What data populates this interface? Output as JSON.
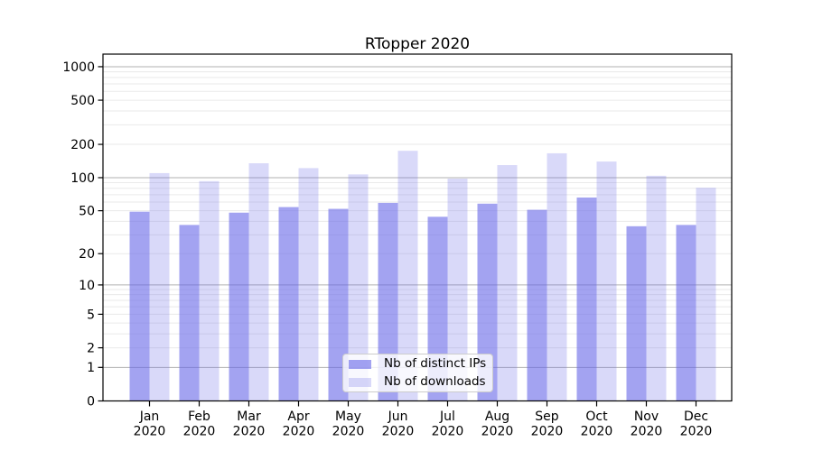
{
  "chart_data": {
    "type": "bar",
    "title": "RTopper 2020",
    "categories": [
      "Jan",
      "Feb",
      "Mar",
      "Apr",
      "May",
      "Jun",
      "Jul",
      "Aug",
      "Sep",
      "Oct",
      "Nov",
      "Dec"
    ],
    "category_year": "2020",
    "series": [
      {
        "name": "Nb of distinct IPs",
        "values": [
          49,
          37,
          48,
          54,
          52,
          59,
          44,
          58,
          51,
          66,
          36,
          37
        ],
        "color": "#6666e8",
        "opacity": 0.6
      },
      {
        "name": "Nb of downloads",
        "values": [
          110,
          93,
          135,
          122,
          107,
          175,
          98,
          130,
          166,
          140,
          104,
          81
        ],
        "color": "#6666e8",
        "opacity": 0.25
      }
    ],
    "yscale": "log1p",
    "ylim": [
      0,
      1300
    ],
    "ytick_labels": [
      "1000",
      "500",
      "200",
      "100",
      "50",
      "20",
      "10",
      "5",
      "2",
      "1",
      "0"
    ],
    "ytick_values": [
      1000,
      500,
      200,
      100,
      50,
      20,
      10,
      5,
      2,
      1,
      0
    ],
    "grid_major": [
      1,
      10,
      100,
      1000
    ],
    "grid_minor": [
      2,
      3,
      4,
      5,
      6,
      7,
      8,
      9,
      20,
      30,
      40,
      50,
      60,
      70,
      80,
      90,
      200,
      300,
      400,
      500,
      600,
      700,
      800,
      900
    ],
    "grid": "on",
    "legend_position": "lower center",
    "colors": {
      "bar_base": "#6666e8",
      "grid_major": "#b0b0b0",
      "grid_minor": "#eaeaea",
      "spine": "#000000",
      "text": "#000000",
      "legend_border": "#cccccc"
    }
  }
}
